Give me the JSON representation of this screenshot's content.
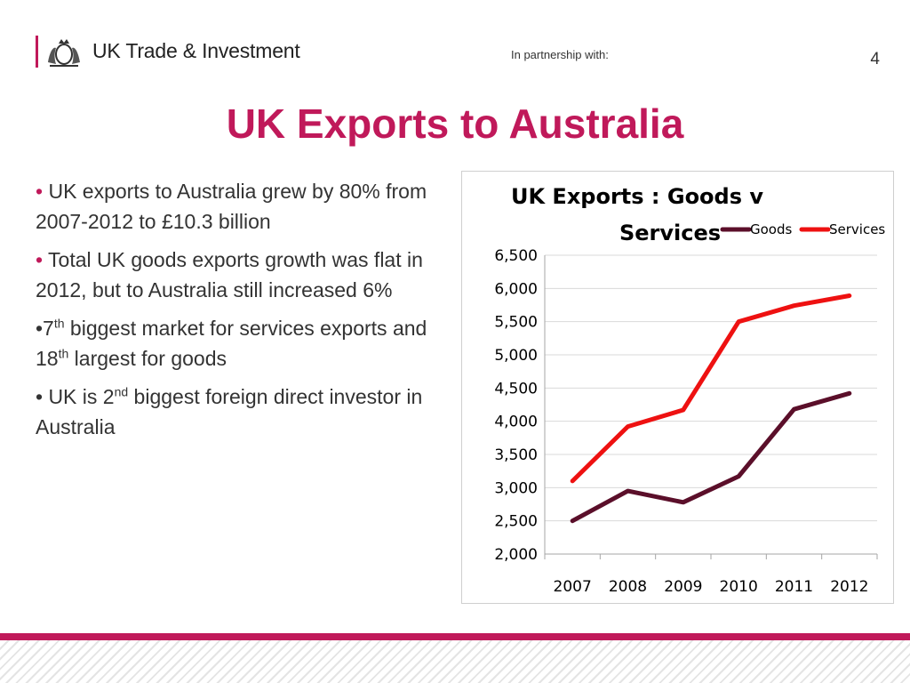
{
  "header": {
    "brand": "UK Trade & Investment",
    "partnership": "In partnership with:",
    "page_number": "4"
  },
  "slide": {
    "title": "UK Exports to Australia",
    "bullets": [
      {
        "marker": "•",
        "parts": [
          " UK exports to Australia grew by 80% from 2007-2012 to £10.3 billion"
        ]
      },
      {
        "marker": "•",
        "parts": [
          " Total UK goods exports growth was flat in 2012, but to Australia still increased 6%"
        ]
      },
      {
        "marker": "",
        "parts": [
          "•7",
          "th",
          " biggest market for services exports and 18",
          "th",
          " largest for goods"
        ]
      },
      {
        "marker": "",
        "parts": [
          "• UK is 2",
          "nd",
          " biggest foreign direct investor in Australia"
        ]
      }
    ]
  },
  "chart_data": {
    "type": "line",
    "title": "UK Exports : Goods v Services",
    "title_lines": [
      "UK Exports : Goods v",
      "Services"
    ],
    "categories": [
      "2007",
      "2008",
      "2009",
      "2010",
      "2011",
      "2012"
    ],
    "ylim": [
      2000,
      6500
    ],
    "yticks": [
      2000,
      2500,
      3000,
      3500,
      4000,
      4500,
      5000,
      5500,
      6000,
      6500
    ],
    "ytick_labels": [
      "2,000",
      "2,500",
      "3,000",
      "3,500",
      "4,000",
      "4,500",
      "5,000",
      "5,500",
      "6,000",
      "6,500"
    ],
    "grid": true,
    "legend": "top-right",
    "series": [
      {
        "name": "Goods",
        "color": "#5b0f2a",
        "values": [
          2500,
          2950,
          2780,
          3170,
          4180,
          4420
        ]
      },
      {
        "name": "Services",
        "color": "#ee1111",
        "values": [
          3100,
          3920,
          4170,
          5500,
          5740,
          5890
        ]
      }
    ]
  }
}
